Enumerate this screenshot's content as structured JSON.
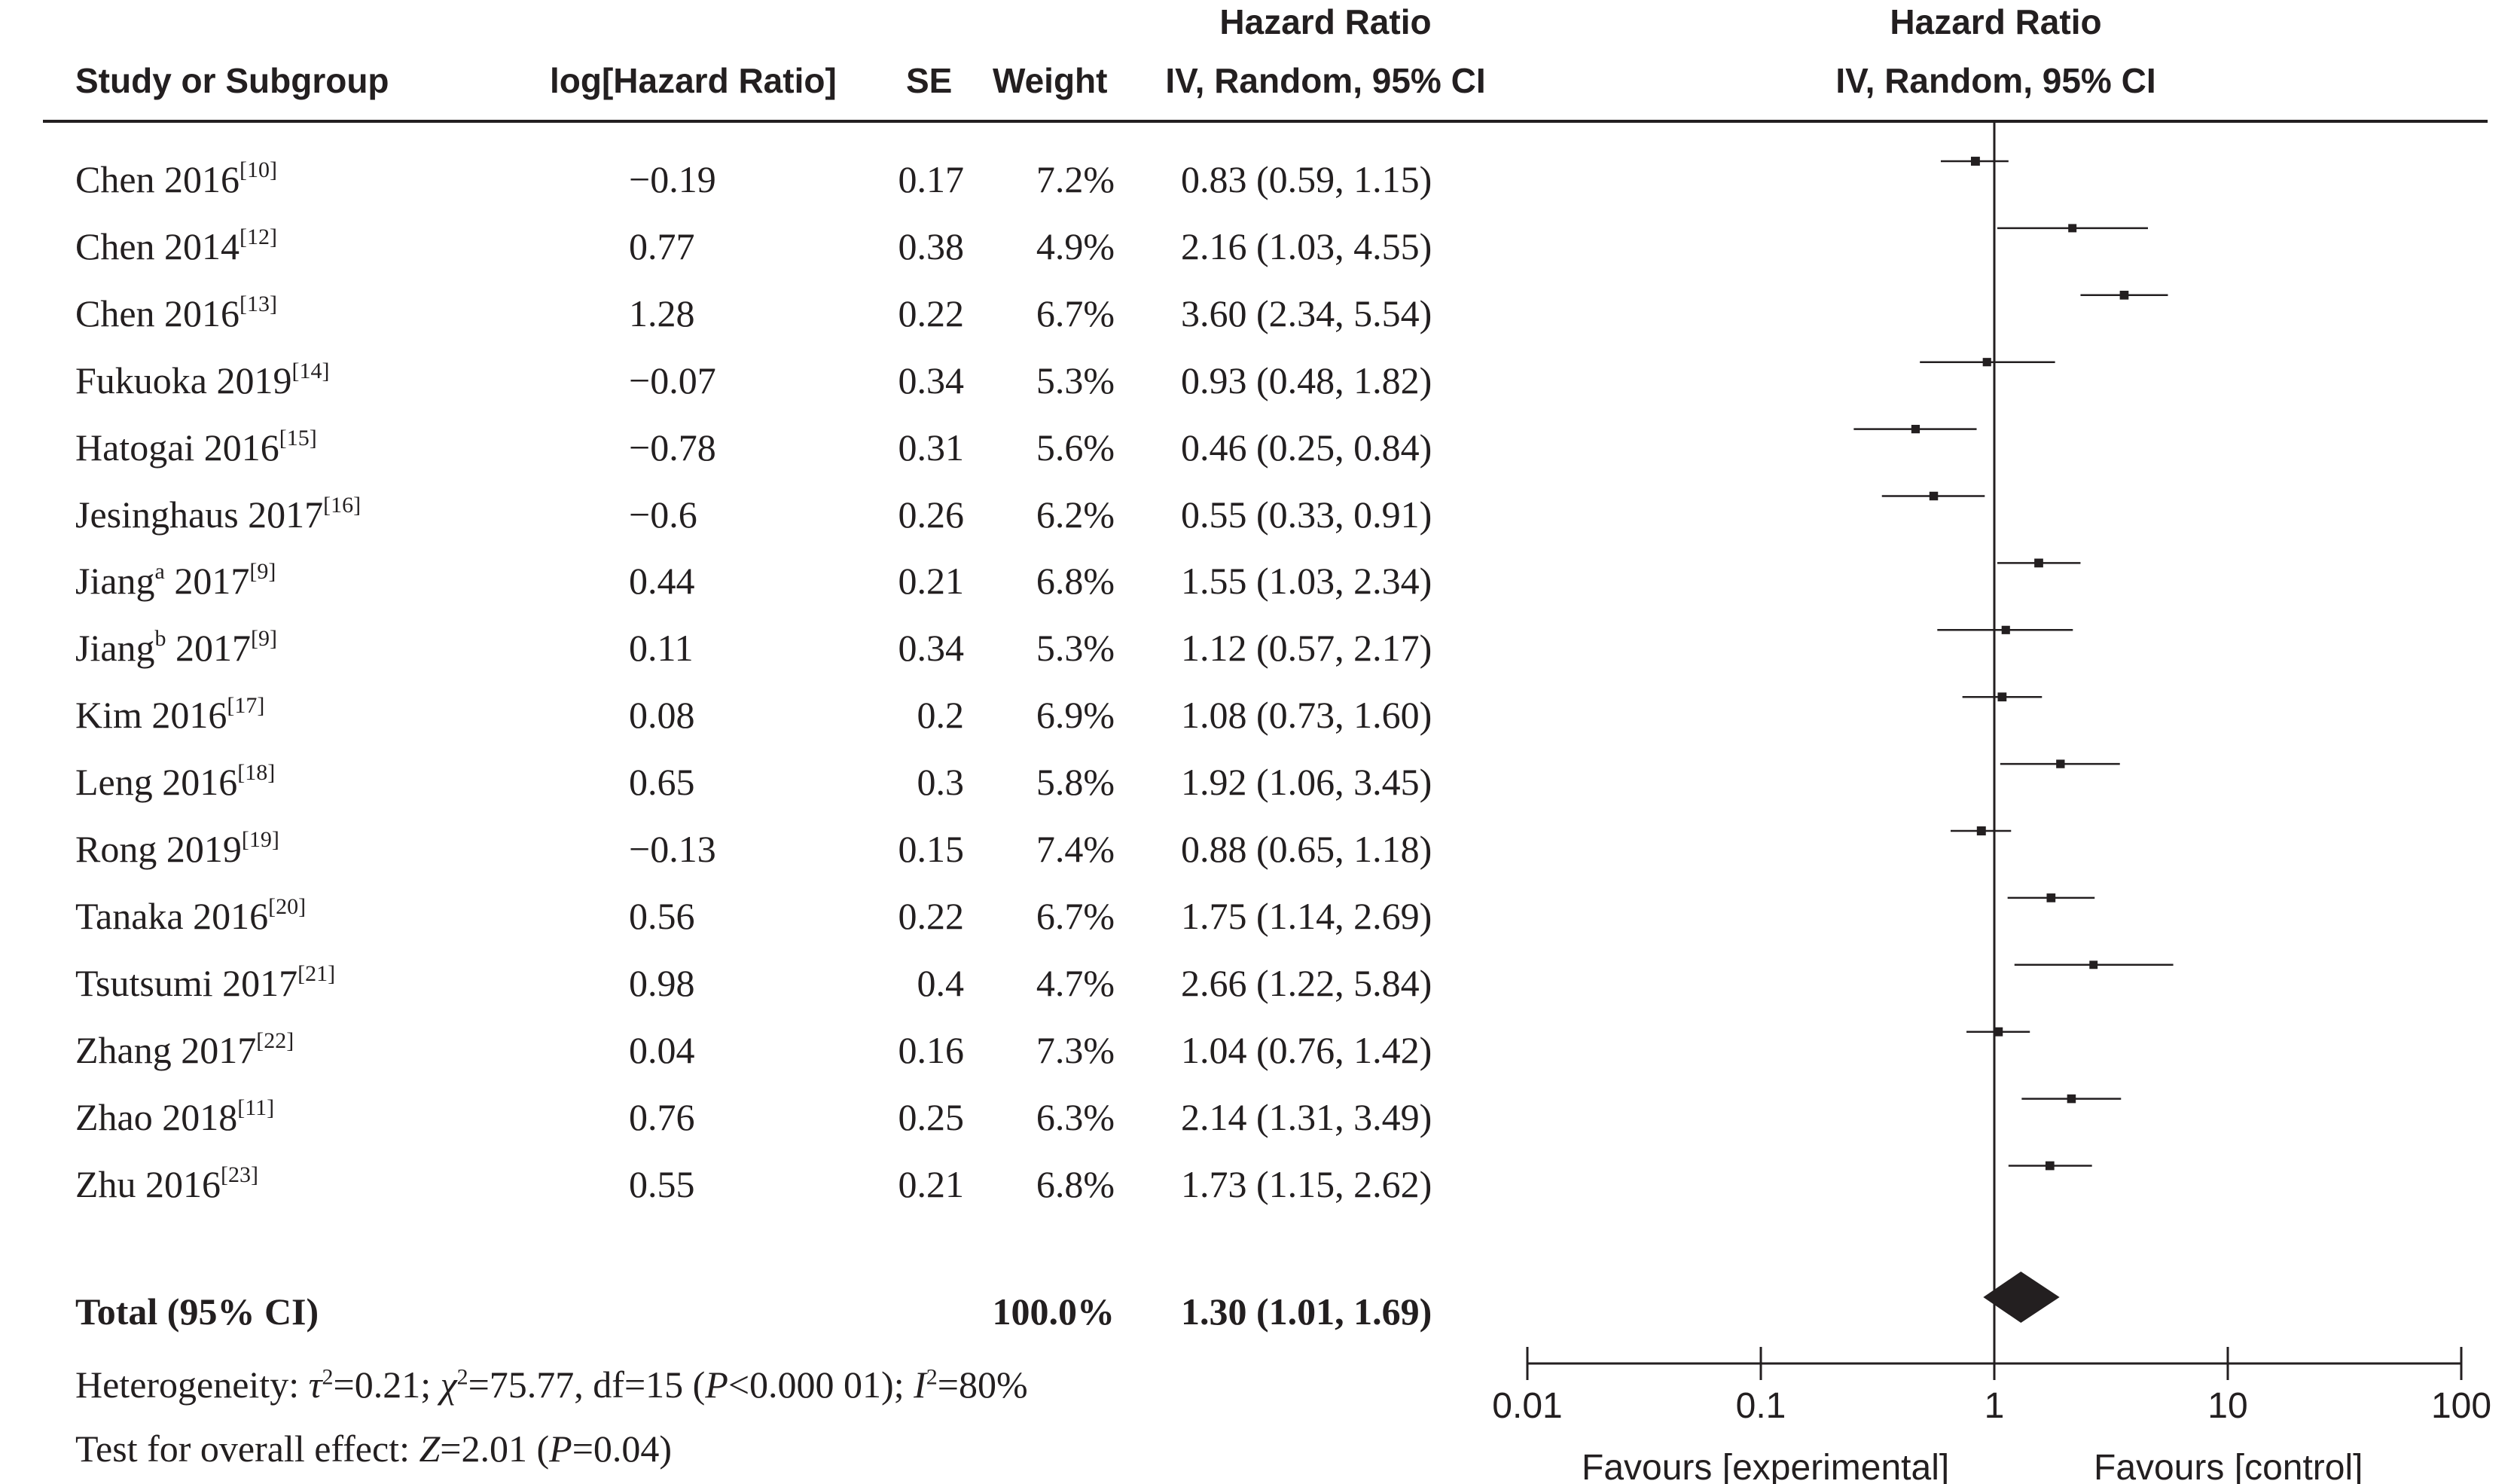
{
  "header": {
    "study": "Study or Subgroup",
    "loghr": "log[Hazard Ratio]",
    "se": "SE",
    "weight": "Weight",
    "hr_title": "Hazard Ratio",
    "hr_method": "IV, Random, 95% CI",
    "plot_title": "Hazard Ratio",
    "plot_method": "IV, Random, 95% CI"
  },
  "studies": [
    {
      "name": "Chen 2016",
      "sup": "[10]",
      "loghr": "−0.19",
      "se": "0.17",
      "weight": "7.2%",
      "ci": "0.83 (0.59, 1.15)"
    },
    {
      "name": "Chen 2014",
      "sup": "[12]",
      "loghr": "0.77",
      "se": "0.38",
      "weight": "4.9%",
      "ci": "2.16 (1.03, 4.55)"
    },
    {
      "name": "Chen 2016",
      "sup": "[13]",
      "loghr": "1.28",
      "se": "0.22",
      "weight": "6.7%",
      "ci": "3.60 (2.34, 5.54)"
    },
    {
      "name": "Fukuoka 2019",
      "sup": "[14]",
      "loghr": "−0.07",
      "se": "0.34",
      "weight": "5.3%",
      "ci": "0.93 (0.48, 1.82)"
    },
    {
      "name": "Hatogai 2016",
      "sup": "[15]",
      "loghr": "−0.78",
      "se": "0.31",
      "weight": "5.6%",
      "ci": "0.46 (0.25, 0.84)"
    },
    {
      "name": "Jesinghaus 2017",
      "sup": "[16]",
      "loghr": "−0.6",
      "se": "0.26",
      "weight": "6.2%",
      "ci": "0.55 (0.33, 0.91)"
    },
    {
      "name": "Jiang",
      "name_sup": "a",
      "name_suffix": " 2017",
      "sup": "[9]",
      "loghr": "0.44",
      "se": "0.21",
      "weight": "6.8%",
      "ci": "1.55 (1.03, 2.34)"
    },
    {
      "name": "Jiang",
      "name_sup": "b",
      "name_suffix": " 2017",
      "sup": "[9]",
      "loghr": "0.11",
      "se": "0.34",
      "weight": "5.3%",
      "ci": "1.12 (0.57, 2.17)"
    },
    {
      "name": "Kim 2016",
      "sup": "[17]",
      "loghr": "0.08",
      "se": "0.2",
      "weight": "6.9%",
      "ci": "1.08 (0.73, 1.60)"
    },
    {
      "name": "Leng 2016",
      "sup": "[18]",
      "loghr": "0.65",
      "se": "0.3",
      "weight": "5.8%",
      "ci": "1.92 (1.06, 3.45)"
    },
    {
      "name": "Rong 2019",
      "sup": "[19]",
      "loghr": "−0.13",
      "se": "0.15",
      "weight": "7.4%",
      "ci": "0.88 (0.65, 1.18)"
    },
    {
      "name": "Tanaka 2016",
      "sup": "[20]",
      "loghr": "0.56",
      "se": "0.22",
      "weight": "6.7%",
      "ci": "1.75 (1.14, 2.69)"
    },
    {
      "name": "Tsutsumi 2017",
      "sup": "[21]",
      "loghr": "0.98",
      "se": "0.4",
      "weight": "4.7%",
      "ci": "2.66 (1.22, 5.84)"
    },
    {
      "name": "Zhang 2017",
      "sup": "[22]",
      "loghr": "0.04",
      "se": "0.16",
      "weight": "7.3%",
      "ci": "1.04 (0.76, 1.42)"
    },
    {
      "name": "Zhao 2018",
      "sup": "[11]",
      "loghr": "0.76",
      "se": "0.25",
      "weight": "6.3%",
      "ci": "2.14 (1.31, 3.49)"
    },
    {
      "name": "Zhu 2016",
      "sup": "[23]",
      "loghr": "0.55",
      "se": "0.21",
      "weight": "6.8%",
      "ci": "1.73 (1.15, 2.62)"
    }
  ],
  "total": {
    "label": "Total (95% CI)",
    "weight": "100.0%",
    "ci": "1.30 (1.01, 1.69)"
  },
  "heterogeneity": {
    "prefix": "Heterogeneity: ",
    "tau": "τ",
    "tau_val": "=0.21; ",
    "chi": "χ",
    "chi_val": "=75.77, df=15 (",
    "p": "P",
    "p_val": "<0.000 01); ",
    "i": "I",
    "i_val": "=80%",
    "sup2": "2"
  },
  "overall": {
    "prefix": "Test for overall effect: ",
    "z": "Z",
    "z_val": "=2.01 (",
    "p": "P",
    "p_val": "=0.04)"
  },
  "axis": {
    "ticks": [
      "0.01",
      "0.1",
      "1",
      "10",
      "100"
    ],
    "left_label": "Favours [experimental]",
    "right_label": "Favours [control]"
  },
  "chart_data": {
    "type": "forest",
    "scale": "log",
    "xlim": [
      0.01,
      100
    ],
    "null_line": 1,
    "xticks": [
      0.01,
      0.1,
      1,
      10,
      100
    ],
    "series": [
      {
        "study": "Chen 2016 [10]",
        "hr": 0.83,
        "lo": 0.59,
        "hi": 1.15,
        "weight": 7.2
      },
      {
        "study": "Chen 2014 [12]",
        "hr": 2.16,
        "lo": 1.03,
        "hi": 4.55,
        "weight": 4.9
      },
      {
        "study": "Chen 2016 [13]",
        "hr": 3.6,
        "lo": 2.34,
        "hi": 5.54,
        "weight": 6.7
      },
      {
        "study": "Fukuoka 2019 [14]",
        "hr": 0.93,
        "lo": 0.48,
        "hi": 1.82,
        "weight": 5.3
      },
      {
        "study": "Hatogai 2016 [15]",
        "hr": 0.46,
        "lo": 0.25,
        "hi": 0.84,
        "weight": 5.6
      },
      {
        "study": "Jesinghaus 2017 [16]",
        "hr": 0.55,
        "lo": 0.33,
        "hi": 0.91,
        "weight": 6.2
      },
      {
        "study": "Jiang a 2017 [9]",
        "hr": 1.55,
        "lo": 1.03,
        "hi": 2.34,
        "weight": 6.8
      },
      {
        "study": "Jiang b 2017 [9]",
        "hr": 1.12,
        "lo": 0.57,
        "hi": 2.17,
        "weight": 5.3
      },
      {
        "study": "Kim 2016 [17]",
        "hr": 1.08,
        "lo": 0.73,
        "hi": 1.6,
        "weight": 6.9
      },
      {
        "study": "Leng 2016 [18]",
        "hr": 1.92,
        "lo": 1.06,
        "hi": 3.45,
        "weight": 5.8
      },
      {
        "study": "Rong 2019 [19]",
        "hr": 0.88,
        "lo": 0.65,
        "hi": 1.18,
        "weight": 7.4
      },
      {
        "study": "Tanaka 2016 [20]",
        "hr": 1.75,
        "lo": 1.14,
        "hi": 2.69,
        "weight": 6.7
      },
      {
        "study": "Tsutsumi 2017 [21]",
        "hr": 2.66,
        "lo": 1.22,
        "hi": 5.84,
        "weight": 4.7
      },
      {
        "study": "Zhang 2017 [22]",
        "hr": 1.04,
        "lo": 0.76,
        "hi": 1.42,
        "weight": 7.3
      },
      {
        "study": "Zhao 2018 [11]",
        "hr": 2.14,
        "lo": 1.31,
        "hi": 3.49,
        "weight": 6.3
      },
      {
        "study": "Zhu 2016 [23]",
        "hr": 1.73,
        "lo": 1.15,
        "hi": 2.62,
        "weight": 6.8
      }
    ],
    "total": {
      "hr": 1.3,
      "lo": 1.01,
      "hi": 1.69
    }
  }
}
